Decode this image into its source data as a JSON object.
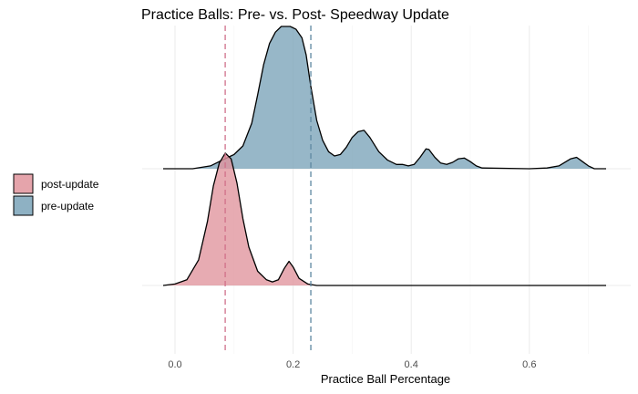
{
  "chart_data": {
    "type": "area",
    "subtype": "ridgeline-density",
    "title": "Practice Balls: Pre- vs. Post- Speedway Update",
    "xlabel": "Practice Ball Percentage",
    "ylabel": "",
    "xlim": [
      -0.04,
      0.74
    ],
    "x_ticks": [
      0.0,
      0.2,
      0.4,
      0.6
    ],
    "x_tick_labels": [
      "0.0",
      "0.2",
      "0.4",
      "0.6"
    ],
    "grid": true,
    "legend_position": "left",
    "series": [
      {
        "name": "post-update",
        "color": "#e0949c",
        "line_color": "#d0708a",
        "mean": 0.085,
        "points": [
          [
            -0.02,
            0.0
          ],
          [
            0.0,
            0.01
          ],
          [
            0.02,
            0.04
          ],
          [
            0.04,
            0.18
          ],
          [
            0.055,
            0.45
          ],
          [
            0.065,
            0.7
          ],
          [
            0.075,
            0.86
          ],
          [
            0.085,
            0.93
          ],
          [
            0.095,
            0.89
          ],
          [
            0.105,
            0.72
          ],
          [
            0.115,
            0.47
          ],
          [
            0.125,
            0.27
          ],
          [
            0.14,
            0.1
          ],
          [
            0.155,
            0.04
          ],
          [
            0.165,
            0.025
          ],
          [
            0.175,
            0.04
          ],
          [
            0.185,
            0.12
          ],
          [
            0.193,
            0.17
          ],
          [
            0.2,
            0.13
          ],
          [
            0.21,
            0.05
          ],
          [
            0.225,
            0.01
          ],
          [
            0.24,
            0.0
          ],
          [
            0.3,
            0.0
          ],
          [
            0.4,
            0.0
          ],
          [
            0.5,
            0.0
          ],
          [
            0.6,
            0.0
          ],
          [
            0.73,
            0.0
          ]
        ]
      },
      {
        "name": "pre-update",
        "color": "#7aa3b8",
        "line_color": "#5d87a0",
        "mean": 0.23,
        "points": [
          [
            -0.02,
            0.0
          ],
          [
            0.0,
            0.0
          ],
          [
            0.03,
            0.0
          ],
          [
            0.06,
            0.02
          ],
          [
            0.08,
            0.06
          ],
          [
            0.1,
            0.1
          ],
          [
            0.115,
            0.16
          ],
          [
            0.13,
            0.32
          ],
          [
            0.14,
            0.52
          ],
          [
            0.15,
            0.73
          ],
          [
            0.16,
            0.88
          ],
          [
            0.17,
            0.96
          ],
          [
            0.18,
            1.0
          ],
          [
            0.195,
            1.0
          ],
          [
            0.205,
            0.98
          ],
          [
            0.215,
            0.92
          ],
          [
            0.222,
            0.8
          ],
          [
            0.23,
            0.58
          ],
          [
            0.24,
            0.34
          ],
          [
            0.25,
            0.2
          ],
          [
            0.26,
            0.12
          ],
          [
            0.27,
            0.09
          ],
          [
            0.28,
            0.1
          ],
          [
            0.29,
            0.15
          ],
          [
            0.3,
            0.22
          ],
          [
            0.31,
            0.26
          ],
          [
            0.32,
            0.27
          ],
          [
            0.33,
            0.22
          ],
          [
            0.345,
            0.12
          ],
          [
            0.36,
            0.06
          ],
          [
            0.375,
            0.03
          ],
          [
            0.385,
            0.03
          ],
          [
            0.395,
            0.02
          ],
          [
            0.405,
            0.03
          ],
          [
            0.415,
            0.08
          ],
          [
            0.425,
            0.14
          ],
          [
            0.43,
            0.135
          ],
          [
            0.44,
            0.08
          ],
          [
            0.45,
            0.04
          ],
          [
            0.46,
            0.03
          ],
          [
            0.47,
            0.045
          ],
          [
            0.48,
            0.07
          ],
          [
            0.49,
            0.075
          ],
          [
            0.5,
            0.05
          ],
          [
            0.51,
            0.02
          ],
          [
            0.52,
            0.005
          ],
          [
            0.6,
            0.0
          ],
          [
            0.63,
            0.005
          ],
          [
            0.65,
            0.02
          ],
          [
            0.67,
            0.07
          ],
          [
            0.68,
            0.08
          ],
          [
            0.69,
            0.05
          ],
          [
            0.7,
            0.02
          ],
          [
            0.71,
            0.0
          ],
          [
            0.73,
            0.0
          ]
        ]
      }
    ]
  }
}
